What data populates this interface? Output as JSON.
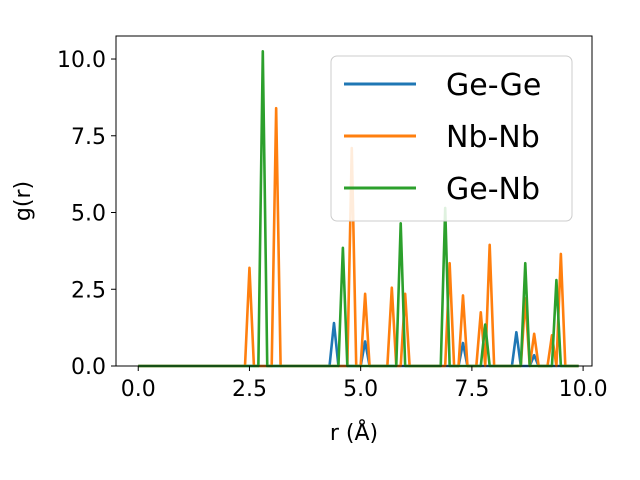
{
  "chart_data": {
    "type": "line",
    "xlabel": "r (Å)",
    "ylabel": "g(r)",
    "xlim": [
      -0.5,
      10.2
    ],
    "ylim": [
      0,
      10.75
    ],
    "xticks": [
      0.0,
      2.5,
      5.0,
      7.5,
      10.0
    ],
    "xtick_labels": [
      "0.0",
      "2.5",
      "5.0",
      "7.5",
      "10.0"
    ],
    "yticks": [
      0.0,
      2.5,
      5.0,
      7.5,
      10.0
    ],
    "ytick_labels": [
      "0.0",
      "2.5",
      "5.0",
      "7.5",
      "10.0"
    ],
    "grid": false,
    "legend_position": "top-right",
    "series": [
      {
        "name": "Ge-Ge",
        "color": "#1f77b4",
        "x": [
          0.0,
          4.3,
          4.4,
          4.5,
          5.0,
          5.1,
          5.2,
          7.2,
          7.3,
          7.4,
          8.4,
          8.5,
          8.6,
          8.8,
          8.9,
          9.0,
          9.9
        ],
        "y": [
          0,
          0,
          1.4,
          0,
          0,
          0.8,
          0,
          0,
          0.75,
          0,
          0,
          1.1,
          0,
          0,
          0.35,
          0,
          0
        ]
      },
      {
        "name": "Nb-Nb",
        "color": "#ff7f0e",
        "x": [
          0.0,
          2.4,
          2.5,
          2.6,
          3.0,
          3.1,
          3.2,
          4.7,
          4.8,
          4.9,
          5.0,
          5.1,
          5.2,
          5.6,
          5.7,
          5.8,
          5.9,
          6.0,
          6.1,
          6.9,
          7.0,
          7.1,
          7.2,
          7.3,
          7.4,
          7.6,
          7.7,
          7.8,
          7.9,
          8.0,
          8.6,
          8.7,
          8.8,
          8.9,
          9.0,
          9.2,
          9.3,
          9.4,
          9.5,
          9.6,
          9.9
        ],
        "y": [
          0,
          0,
          3.2,
          0,
          0,
          8.4,
          0,
          0,
          7.1,
          0,
          0,
          2.35,
          0,
          0,
          2.55,
          0,
          0,
          2.35,
          0,
          0,
          3.35,
          0,
          0,
          2.3,
          0,
          0,
          1.75,
          0,
          3.95,
          0,
          0,
          2.2,
          0,
          1.05,
          0,
          0,
          1.0,
          0,
          3.65,
          0,
          0
        ]
      },
      {
        "name": "Ge-Nb",
        "color": "#2ca02c",
        "x": [
          0.0,
          2.7,
          2.8,
          2.9,
          4.5,
          4.6,
          4.7,
          5.8,
          5.9,
          6.0,
          6.8,
          6.9,
          7.0,
          7.7,
          7.8,
          7.9,
          8.6,
          8.7,
          8.8,
          9.3,
          9.4,
          9.5,
          9.9
        ],
        "y": [
          0,
          0,
          10.25,
          0,
          0,
          3.85,
          0,
          0,
          4.65,
          0,
          0,
          5.15,
          0,
          0,
          1.35,
          0,
          0,
          3.35,
          0,
          0,
          2.8,
          0,
          0
        ]
      }
    ]
  }
}
